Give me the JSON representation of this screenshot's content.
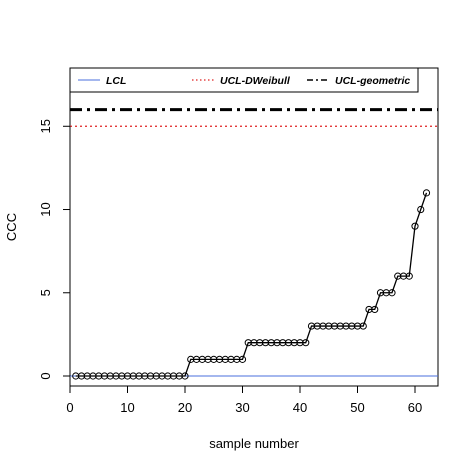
{
  "chart_data": {
    "type": "line",
    "xlabel": "sample number",
    "ylabel": "CCC",
    "xlim": [
      0,
      64
    ],
    "ylim": [
      -0.6,
      18.5
    ],
    "x_ticks": [
      0,
      10,
      20,
      30,
      40,
      50,
      60
    ],
    "y_ticks": [
      0,
      5,
      10,
      15
    ],
    "grid": false,
    "legend_position": "top",
    "series": [
      {
        "name": "",
        "color": "#000000",
        "marker": "open-circle",
        "x": [
          1,
          2,
          3,
          4,
          5,
          6,
          7,
          8,
          9,
          10,
          11,
          12,
          13,
          14,
          15,
          16,
          17,
          18,
          19,
          20,
          21,
          22,
          23,
          24,
          25,
          26,
          27,
          28,
          29,
          30,
          31,
          32,
          33,
          34,
          35,
          36,
          37,
          38,
          39,
          40,
          41,
          42,
          43,
          44,
          45,
          46,
          47,
          48,
          49,
          50,
          51,
          52,
          53,
          54,
          55,
          56,
          57,
          58,
          59,
          60,
          61,
          62
        ],
        "values": [
          0,
          0,
          0,
          0,
          0,
          0,
          0,
          0,
          0,
          0,
          0,
          0,
          0,
          0,
          0,
          0,
          0,
          0,
          0,
          0,
          1,
          1,
          1,
          1,
          1,
          1,
          1,
          1,
          1,
          1,
          2,
          2,
          2,
          2,
          2,
          2,
          2,
          2,
          2,
          2,
          2,
          3,
          3,
          3,
          3,
          3,
          3,
          3,
          3,
          3,
          3,
          4,
          4,
          5,
          5,
          5,
          6,
          6,
          6,
          9,
          10,
          11
        ]
      }
    ],
    "reference_lines": [
      {
        "name": "LCL",
        "value": 0,
        "color": "#4a6fdc",
        "style": "solid"
      },
      {
        "name": "UCL-DWeibull",
        "value": 15,
        "color": "#e02020",
        "style": "dotted"
      },
      {
        "name": "UCL-geometric",
        "value": 16,
        "color": "#000000",
        "style": "dash-dot"
      }
    ]
  }
}
